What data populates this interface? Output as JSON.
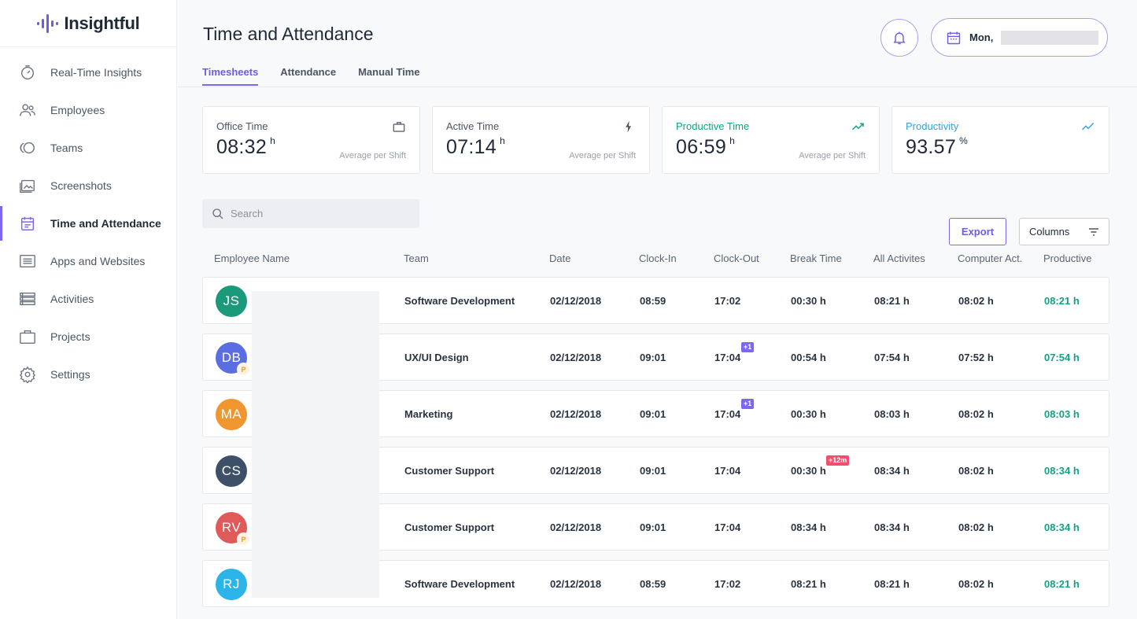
{
  "brand": {
    "name": "Insightful",
    "accent": "#7b68ee"
  },
  "sidebar": {
    "items": [
      {
        "label": "Real-Time Insights",
        "icon": "gauge-icon"
      },
      {
        "label": "Employees",
        "icon": "users-icon"
      },
      {
        "label": "Teams",
        "icon": "teams-icon"
      },
      {
        "label": "Screenshots",
        "icon": "image-icon"
      },
      {
        "label": "Time and Attendance",
        "icon": "calendar-icon",
        "active": true
      },
      {
        "label": "Apps and Websites",
        "icon": "list-window-icon"
      },
      {
        "label": "Activities",
        "icon": "activities-icon"
      },
      {
        "label": "Projects",
        "icon": "briefcase-icon"
      },
      {
        "label": "Settings",
        "icon": "gear-icon"
      }
    ]
  },
  "header": {
    "title": "Time and Attendance",
    "date_label": "Mon,"
  },
  "tabs": [
    {
      "label": "Timesheets",
      "active": true
    },
    {
      "label": "Attendance"
    },
    {
      "label": "Manual Time"
    }
  ],
  "stats": [
    {
      "label": "Office Time",
      "value": "08:32",
      "unit": "h",
      "sub": "Average per Shift",
      "icon": "briefcase-icon"
    },
    {
      "label": "Active Time",
      "value": "07:14",
      "unit": "h",
      "sub": "Average per Shift",
      "icon": "lightning-icon"
    },
    {
      "label": "Productive Time",
      "value": "06:59",
      "unit": "h",
      "sub": "Average per Shift",
      "icon": "trend-up-icon",
      "color": "#16a085"
    },
    {
      "label": "Productivity",
      "value": "93.57",
      "unit": "%",
      "sub": "",
      "icon": "trend-line-icon",
      "color": "#3aa0d8"
    }
  ],
  "search": {
    "placeholder": "Search"
  },
  "toolbar": {
    "export_label": "Export",
    "columns_label": "Columns"
  },
  "table": {
    "headers": [
      "Employee Name",
      "Team",
      "Date",
      "Clock-In",
      "Clock-Out",
      "Break Time",
      "All Activites",
      "Computer Act.",
      "Productive"
    ],
    "rows": [
      {
        "initials": "JS",
        "avatar_color": "#1a9a7a",
        "p": false,
        "team": "Software Development",
        "date": "02/12/2018",
        "clock_in": "08:59",
        "clock_out": "17:02",
        "clock_out_badge": "",
        "break": "00:30 h",
        "break_badge": "",
        "all": "08:21 h",
        "computer": "08:02 h",
        "productive": "08:21 h"
      },
      {
        "initials": "DB",
        "avatar_color": "#5b6ee1",
        "p": true,
        "team": "UX/UI Design",
        "date": "02/12/2018",
        "clock_in": "09:01",
        "clock_out": "17:04",
        "clock_out_badge": "+1",
        "break": "00:54 h",
        "break_badge": "",
        "all": "07:54 h",
        "computer": "07:52 h",
        "productive": "07:54 h"
      },
      {
        "initials": "MA",
        "avatar_color": "#f0962e",
        "p": false,
        "team": "Marketing",
        "date": "02/12/2018",
        "clock_in": "09:01",
        "clock_out": "17:04",
        "clock_out_badge": "+1",
        "break": "00:30 h",
        "break_badge": "",
        "all": "08:03 h",
        "computer": "08:02 h",
        "productive": "08:03 h"
      },
      {
        "initials": "CS",
        "avatar_color": "#3d5068",
        "p": false,
        "team": "Customer Support",
        "date": "02/12/2018",
        "clock_in": "09:01",
        "clock_out": "17:04",
        "clock_out_badge": "",
        "break": "00:30 h",
        "break_badge": "+12m",
        "all": "08:34 h",
        "computer": "08:02 h",
        "productive": "08:34 h"
      },
      {
        "initials": "RV",
        "avatar_color": "#e05a5a",
        "p": true,
        "team": "Customer Support",
        "date": "02/12/2018",
        "clock_in": "09:01",
        "clock_out": "17:04",
        "clock_out_badge": "",
        "break": "08:34 h",
        "break_badge": "",
        "all": "08:34 h",
        "computer": "08:02 h",
        "productive": "08:34 h"
      },
      {
        "initials": "RJ",
        "avatar_color": "#2ab4e8",
        "p": false,
        "team": "Software Development",
        "date": "02/12/2018",
        "clock_in": "08:59",
        "clock_out": "17:02",
        "clock_out_badge": "",
        "break": "08:21 h",
        "break_badge": "",
        "all": "08:21 h",
        "computer": "08:02 h",
        "productive": "08:21 h"
      }
    ],
    "p_badge_label": "P"
  }
}
